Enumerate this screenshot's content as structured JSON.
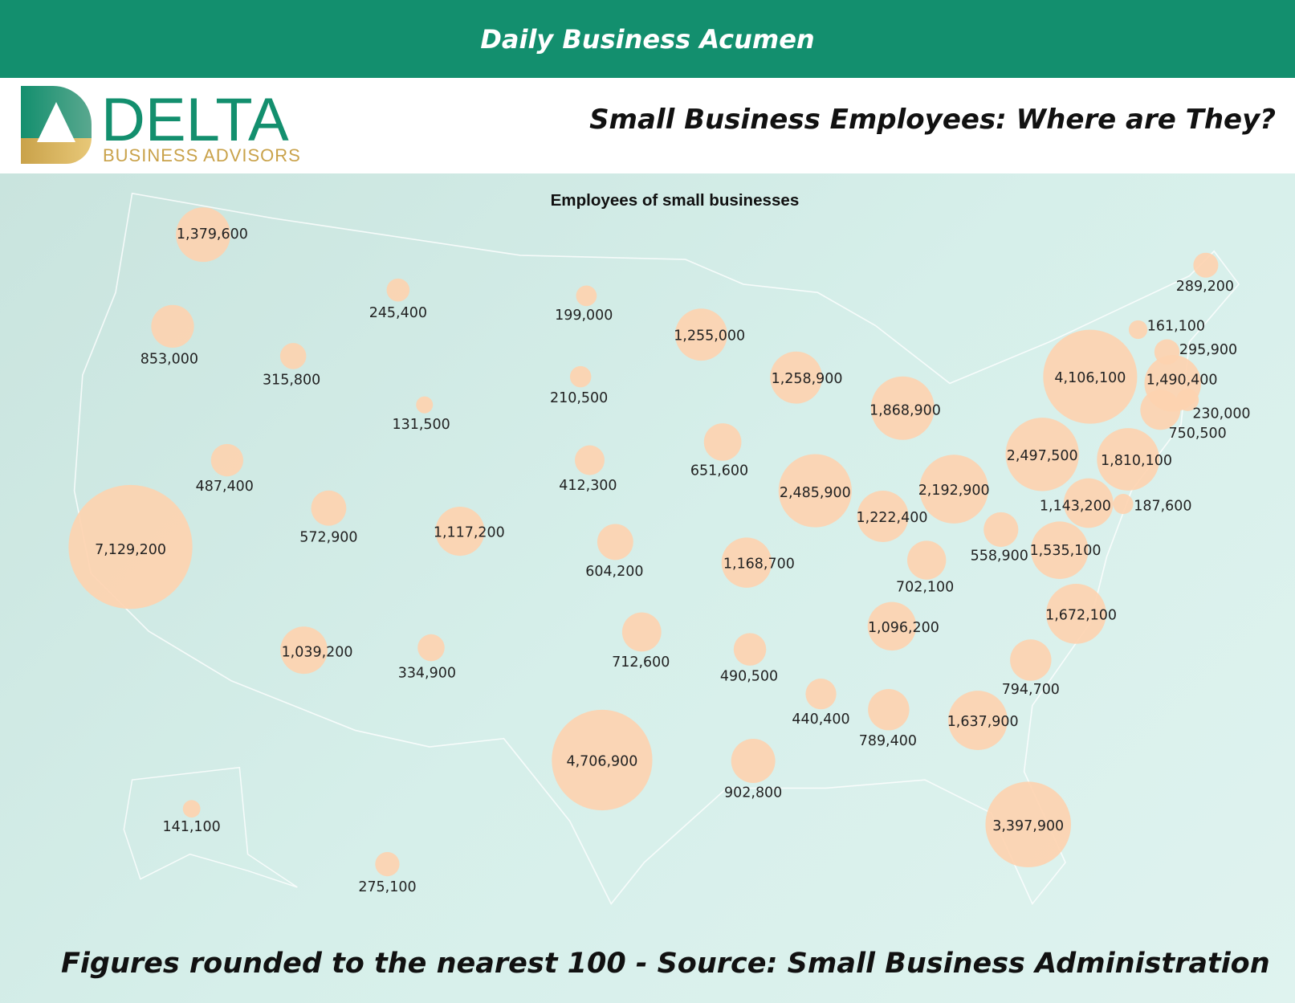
{
  "banner": {
    "title": "Daily Business Acumen"
  },
  "logo": {
    "name": "DELTA",
    "tagline": "BUSINESS ADVISORS"
  },
  "headline": "Small Business Employees:  Where are They?",
  "footer": "Figures rounded to the nearest 100 - Source: Small Business Administration",
  "colors": {
    "banner": "#138f6e",
    "bubble": "#fdd2b0",
    "map_bg": "#d3ebe6",
    "logo_green": "#138f6e",
    "logo_gold": "#c9a24a"
  },
  "chart_data": {
    "type": "bubble-map",
    "title": "Employees of small businesses",
    "values": [
      "1,379,600",
      "853,000",
      "315,800",
      "245,400",
      "131,500",
      "199,000",
      "210,500",
      "412,300",
      "1,255,000",
      "1,258,900",
      "1,868,900",
      "651,600",
      "2,485,900",
      "1,222,400",
      "2,192,900",
      "2,497,500",
      "4,106,100",
      "289,200",
      "161,100",
      "295,900",
      "1,490,400",
      "230,000",
      "750,500",
      "1,810,100",
      "187,600",
      "1,143,200",
      "558,900",
      "1,535,100",
      "702,100",
      "1,672,100",
      "1,096,200",
      "794,700",
      "1,637,900",
      "789,400",
      "440,400",
      "490,500",
      "902,800",
      "1,168,700",
      "604,200",
      "712,600",
      "4,706,900",
      "3,397,900",
      "334,900",
      "1,039,200",
      "1,117,200",
      "572,900",
      "487,400",
      "7,129,200",
      "141,100",
      "275,100"
    ]
  }
}
